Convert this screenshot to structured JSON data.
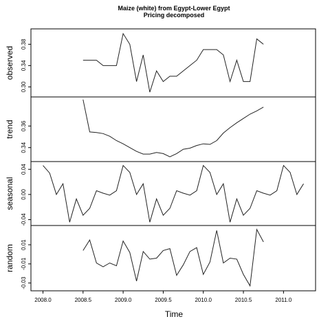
{
  "title": "Maize (white) from Egypt-Lower Egypt",
  "subtitle": "Pricing decomposed",
  "chart_data": {
    "type": "line",
    "title": "Maize (white) from Egypt-Lower Egypt",
    "subtitle": "Pricing decomposed",
    "xlabel": "Time",
    "xlim": [
      2007.85,
      2011.4
    ],
    "x_ticks": [
      2008.0,
      2008.5,
      2009.0,
      2009.5,
      2010.0,
      2010.5,
      2011.0
    ],
    "x_tick_labels": [
      "2008.0",
      "2008.5",
      "2009.0",
      "2009.5",
      "2010.0",
      "2010.5",
      "2011.0"
    ],
    "grid": false,
    "panels": [
      {
        "name": "observed",
        "ylabel": "observed",
        "ylim": [
          0.285,
          0.405
        ],
        "y_ticks": [
          0.3,
          0.34,
          0.38
        ],
        "y_tick_labels": [
          "0.30",
          "0.34",
          "0.38"
        ],
        "x": [
          2008.5,
          2008.583,
          2008.667,
          2008.75,
          2008.833,
          2008.917,
          2009.0,
          2009.083,
          2009.167,
          2009.25,
          2009.333,
          2009.417,
          2009.5,
          2009.583,
          2009.667,
          2009.75,
          2009.833,
          2009.917,
          2010.0,
          2010.083,
          2010.167,
          2010.25,
          2010.333,
          2010.417,
          2010.5,
          2010.583,
          2010.667,
          2010.75
        ],
        "values": [
          0.35,
          0.35,
          0.35,
          0.34,
          0.34,
          0.34,
          0.4,
          0.38,
          0.31,
          0.36,
          0.29,
          0.33,
          0.31,
          0.32,
          0.32,
          0.33,
          0.34,
          0.35,
          0.37,
          0.37,
          0.37,
          0.36,
          0.31,
          0.35,
          0.31,
          0.31,
          0.39,
          0.38
        ]
      },
      {
        "name": "trend",
        "ylabel": "trend",
        "ylim": [
          0.329,
          0.385
        ],
        "y_ticks": [
          0.34,
          0.36
        ],
        "y_tick_labels": [
          "0.34",
          "0.36"
        ],
        "x": [
          2008.5,
          2008.583,
          2008.667,
          2008.75,
          2008.833,
          2008.917,
          2009.0,
          2009.083,
          2009.167,
          2009.25,
          2009.333,
          2009.417,
          2009.5,
          2009.583,
          2009.667,
          2009.75,
          2009.833,
          2009.917,
          2010.0,
          2010.083,
          2010.167,
          2010.25,
          2010.333,
          2010.417,
          2010.5,
          2010.583,
          2010.667,
          2010.75
        ],
        "values": [
          0.3845,
          0.3545,
          0.354,
          0.353,
          0.3505,
          0.3465,
          0.3435,
          0.34,
          0.3365,
          0.334,
          0.334,
          0.3355,
          0.3345,
          0.3315,
          0.3345,
          0.3385,
          0.3395,
          0.342,
          0.3435,
          0.343,
          0.3465,
          0.3535,
          0.3585,
          0.363,
          0.367,
          0.371,
          0.374,
          0.3775
        ]
      },
      {
        "name": "seasonal",
        "ylabel": "seasonal",
        "ylim": [
          -0.046,
          0.049
        ],
        "y_ticks": [
          -0.04,
          0.0,
          0.04
        ],
        "y_tick_labels": [
          "-0.04",
          "0.00",
          "0.04"
        ],
        "x": [
          2008.0,
          2008.083,
          2008.167,
          2008.25,
          2008.333,
          2008.417,
          2008.5,
          2008.583,
          2008.667,
          2008.75,
          2008.833,
          2008.917,
          2009.0,
          2009.083,
          2009.167,
          2009.25,
          2009.333,
          2009.417,
          2009.5,
          2009.583,
          2009.667,
          2009.75,
          2009.833,
          2009.917,
          2010.0,
          2010.083,
          2010.167,
          2010.25,
          2010.333,
          2010.417,
          2010.5,
          2010.583,
          2010.667,
          2010.75,
          2010.833,
          2010.917,
          2011.0,
          2011.083,
          2011.167,
          2011.25
        ],
        "values": [
          0.046,
          0.034,
          0.0,
          0.017,
          -0.044,
          -0.007,
          -0.033,
          -0.022,
          0.006,
          0.002,
          -0.001,
          0.006,
          0.046,
          0.035,
          0.0,
          0.017,
          -0.044,
          -0.007,
          -0.033,
          -0.022,
          0.006,
          0.002,
          -0.001,
          0.006,
          0.046,
          0.035,
          0.0,
          0.017,
          -0.044,
          -0.007,
          -0.033,
          -0.022,
          0.006,
          0.002,
          -0.001,
          0.006,
          0.046,
          0.035,
          0.0,
          0.017
        ]
      },
      {
        "name": "random",
        "ylabel": "random",
        "ylim": [
          -0.036,
          0.028
        ],
        "y_ticks": [
          -0.03,
          -0.01,
          0.01
        ],
        "y_tick_labels": [
          "-0.03",
          "-0.01",
          "0.01"
        ],
        "x": [
          2008.5,
          2008.583,
          2008.667,
          2008.75,
          2008.833,
          2008.917,
          2009.0,
          2009.083,
          2009.167,
          2009.25,
          2009.333,
          2009.417,
          2009.5,
          2009.583,
          2009.667,
          2009.75,
          2009.833,
          2009.917,
          2010.0,
          2010.083,
          2010.167,
          2010.25,
          2010.333,
          2010.417,
          2010.5,
          2010.583,
          2010.667,
          2010.75
        ],
        "values": [
          0.004,
          0.015,
          -0.009,
          -0.013,
          -0.009,
          -0.012,
          0.014,
          0.002,
          -0.028,
          0.003,
          -0.005,
          -0.004,
          0.004,
          0.006,
          -0.022,
          -0.011,
          0.003,
          0.007,
          -0.021,
          -0.008,
          0.025,
          -0.009,
          -0.004,
          -0.005,
          -0.021,
          -0.033,
          0.026,
          0.013
        ]
      }
    ]
  }
}
